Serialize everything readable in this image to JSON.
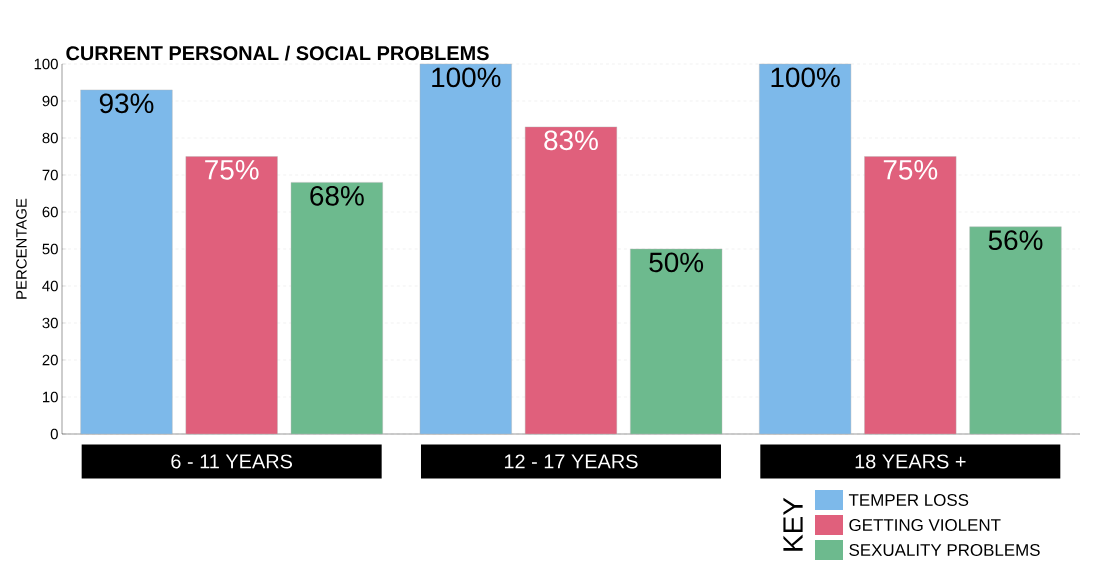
{
  "chart_data": {
    "type": "bar",
    "title": "CURRENT PERSONAL / SOCIAL PROBLEMS",
    "ylabel": "PERCENTAGE",
    "legend_title": "KEY",
    "categories": [
      "6 - 11 YEARS",
      "12 - 17 YEARS",
      "18 YEARS +"
    ],
    "series": [
      {
        "name": "TEMPER LOSS",
        "color": "#7db9ea",
        "values": [
          93,
          100,
          100
        ],
        "value_labels": [
          "93%",
          "100%",
          "100%"
        ]
      },
      {
        "name": "GETTING VIOLENT",
        "color": "#e0607c",
        "values": [
          75,
          83,
          75
        ],
        "value_labels": [
          "75%",
          "83%",
          "75%"
        ]
      },
      {
        "name": "SEXUALITY PROBLEMS",
        "color": "#6dba8e",
        "values": [
          68,
          50,
          56
        ],
        "value_labels": [
          "68%",
          "50%",
          "56%"
        ]
      }
    ],
    "ylim": [
      0,
      100
    ],
    "yticks": [
      0,
      10,
      20,
      30,
      40,
      50,
      60,
      70,
      80,
      90,
      100
    ],
    "grid": "y",
    "legend": "bottom right"
  }
}
